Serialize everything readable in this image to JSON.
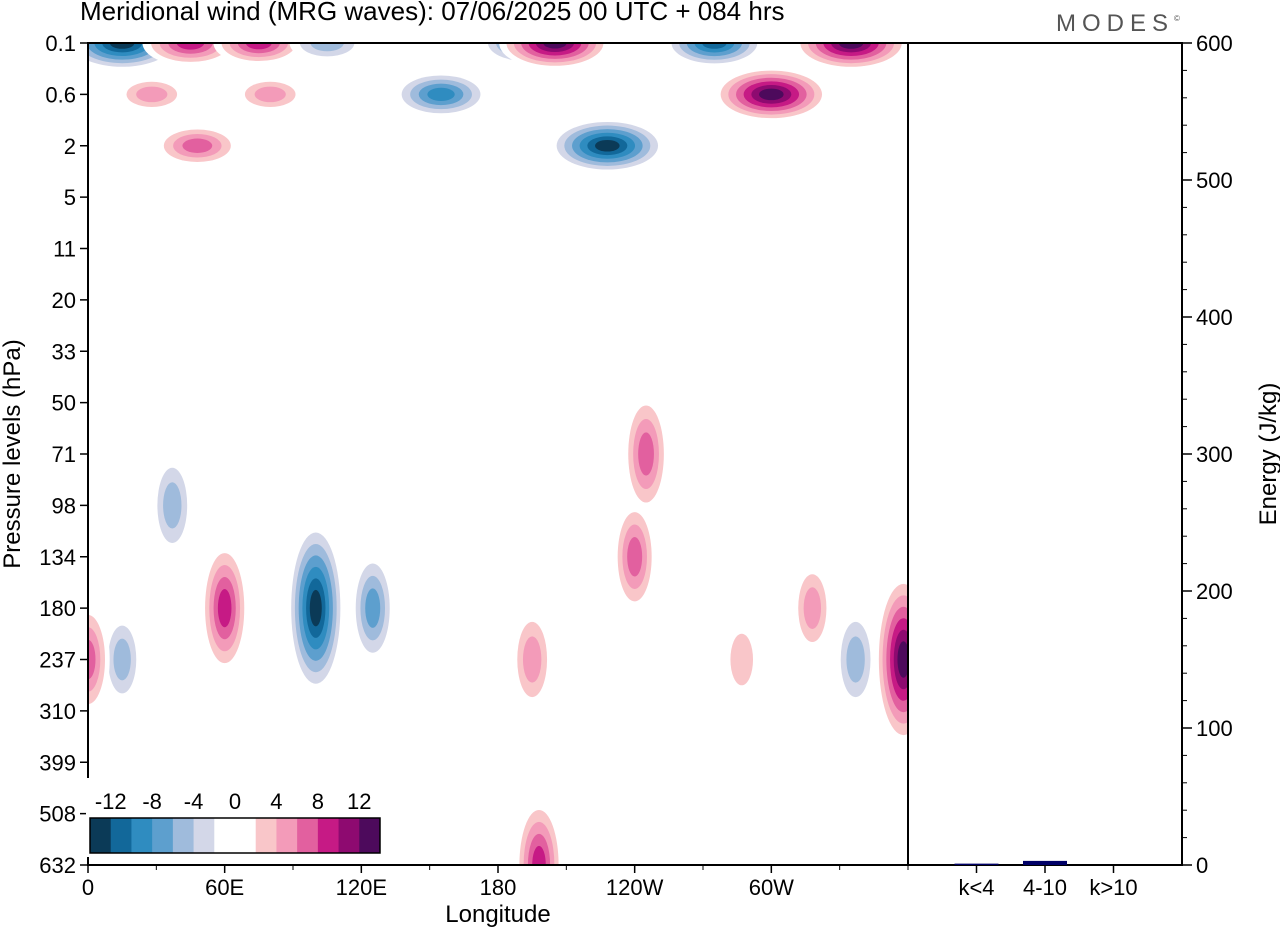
{
  "title": "Meridional wind (MRG waves):  07/06/2025  00 UTC  + 084 hrs",
  "logo": "MODES",
  "chart_data": [
    {
      "type": "heatmap",
      "title": "Meridional wind (MRG waves):  07/06/2025  00 UTC  + 084 hrs",
      "xlabel": "Longitude",
      "ylabel": "Pressure levels (hPa)",
      "x_ticks": [
        "0",
        "60E",
        "120E",
        "180",
        "120W",
        "60W"
      ],
      "x_tick_degrees": [
        0,
        60,
        120,
        180,
        240,
        300
      ],
      "x_range_degrees": [
        0,
        360
      ],
      "y_ticks": [
        "0.1",
        "0.6",
        "2",
        "5",
        "11",
        "20",
        "33",
        "50",
        "71",
        "98",
        "134",
        "180",
        "237",
        "310",
        "399",
        "508",
        "632"
      ],
      "colorbar_labels": [
        "-12",
        "-8",
        "-4",
        "0",
        "4",
        "8",
        "12"
      ],
      "colorbar_levels": [
        -14,
        -12,
        -10,
        -8,
        -6,
        -4,
        -2,
        0,
        2,
        4,
        6,
        8,
        10,
        12,
        14
      ],
      "colorbar_colors": [
        "#0b3a57",
        "#12689a",
        "#2f8cc0",
        "#5d9fce",
        "#9fbbdc",
        "#d3d7e8",
        "#ffffff",
        "#ffffff",
        "#f9c6c9",
        "#f39bb9",
        "#e2609f",
        "#c61a85",
        "#8e0a70",
        "#4d0a5c"
      ],
      "features": [
        {
          "lon": 15,
          "level": "0.1",
          "value": -14
        },
        {
          "lon": 45,
          "level": "0.1",
          "value": 10
        },
        {
          "lon": 75,
          "level": "0.1",
          "value": 9
        },
        {
          "lon": 105,
          "level": "0.1",
          "value": -6
        },
        {
          "lon": 155,
          "level": "0.6",
          "value": -10
        },
        {
          "lon": 192,
          "level": "0.1",
          "value": -9
        },
        {
          "lon": 205,
          "level": "0.1",
          "value": 13
        },
        {
          "lon": 228,
          "level": "2",
          "value": -14
        },
        {
          "lon": 275,
          "level": "0.1",
          "value": -11
        },
        {
          "lon": 300,
          "level": "0.6",
          "value": 14
        },
        {
          "lon": 335,
          "level": "0.1",
          "value": 14
        },
        {
          "lon": 28,
          "level": "0.6",
          "value": 5
        },
        {
          "lon": 48,
          "level": "2",
          "value": 8
        },
        {
          "lon": 80,
          "level": "0.6",
          "value": 5
        },
        {
          "lon": 60,
          "level": "180",
          "value": 9
        },
        {
          "lon": 100,
          "level": "180",
          "value": -13
        },
        {
          "lon": 125,
          "level": "180",
          "value": -7
        },
        {
          "lon": 37,
          "level": "98",
          "value": -6
        },
        {
          "lon": 15,
          "level": "237",
          "value": -5
        },
        {
          "lon": 195,
          "level": "237",
          "value": 6
        },
        {
          "lon": 198,
          "level": "632",
          "value": 9
        },
        {
          "lon": 245,
          "level": "71",
          "value": 8
        },
        {
          "lon": 240,
          "level": "134",
          "value": 7
        },
        {
          "lon": 287,
          "level": "237",
          "value": 4
        },
        {
          "lon": 318,
          "level": "180",
          "value": 5
        },
        {
          "lon": 337,
          "level": "237",
          "value": -6
        },
        {
          "lon": 358,
          "level": "237",
          "value": 13
        },
        {
          "lon": 0,
          "level": "237",
          "value": 7
        }
      ]
    },
    {
      "type": "bar",
      "ylabel": "Energy (J/kg)",
      "categories": [
        "k<4",
        "4-10",
        "k>10"
      ],
      "values": [
        1,
        3,
        0
      ],
      "ylim": [
        0,
        600
      ],
      "y_ticks": [
        "0",
        "100",
        "200",
        "300",
        "400",
        "500",
        "600"
      ],
      "bar_color": "#000066"
    }
  ]
}
